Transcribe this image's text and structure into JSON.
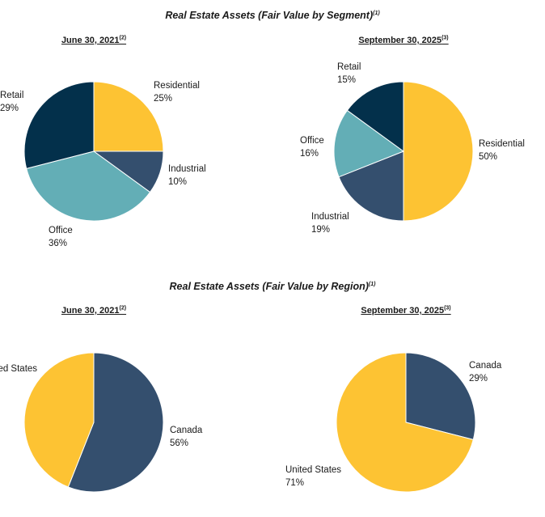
{
  "colors": {
    "Residential": "#FDC333",
    "Industrial": "#344F6E",
    "Office": "#63AEB6",
    "Retail": "#03304B",
    "Canada": "#344F6E",
    "United States": "#FDC333"
  },
  "sections": [
    {
      "title": "Real Estate Assets (Fair Value by Segment)",
      "note": "(1)"
    },
    {
      "title": "Real Estate Assets (Fair Value by Region)",
      "note": "(1)"
    }
  ],
  "chart_data": [
    {
      "type": "pie",
      "title": "June 30, 2021",
      "note": "(2)",
      "categories": [
        "Residential",
        "Industrial",
        "Office",
        "Retail"
      ],
      "values": [
        25,
        10,
        36,
        29
      ],
      "labels": [
        "25%",
        "10%",
        "36%",
        "29%"
      ]
    },
    {
      "type": "pie",
      "title": "September 30, 2025",
      "note": "(3)",
      "categories": [
        "Residential",
        "Industrial",
        "Office",
        "Retail"
      ],
      "values": [
        50,
        19,
        16,
        15
      ],
      "labels": [
        "50%",
        "19%",
        "16%",
        "15%"
      ]
    },
    {
      "type": "pie",
      "title": "June 30, 2021",
      "note": "(2)",
      "categories": [
        "Canada",
        "United States"
      ],
      "values": [
        56,
        44
      ],
      "labels": [
        "56%",
        ""
      ]
    },
    {
      "type": "pie",
      "title": "September 30, 2025",
      "note": "(3)",
      "categories": [
        "Canada",
        "United States"
      ],
      "values": [
        29,
        71
      ],
      "labels": [
        "29%",
        "71%"
      ]
    }
  ]
}
